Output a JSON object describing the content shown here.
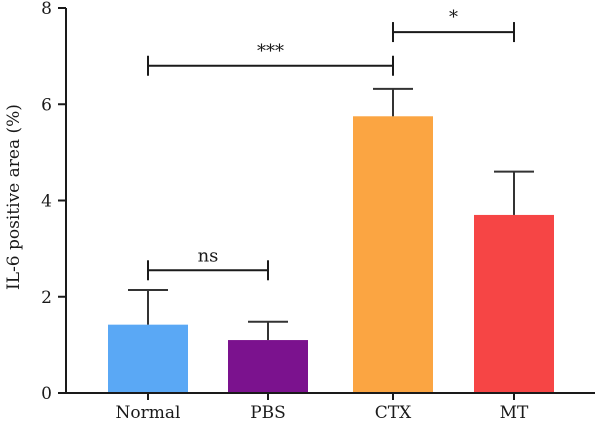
{
  "chart_data": {
    "type": "bar",
    "title": "",
    "xlabel": "",
    "ylabel": "IL-6 positive area (%)",
    "ylim": [
      0,
      8
    ],
    "yticks": [
      0,
      2,
      4,
      6,
      8
    ],
    "categories": [
      "Normal",
      "PBS",
      "CTX",
      "MT"
    ],
    "values": [
      1.42,
      1.1,
      5.75,
      3.7
    ],
    "errors": [
      0.72,
      0.38,
      0.57,
      0.9
    ],
    "colors": [
      "#5aa8f5",
      "#7b128e",
      "#fba542",
      "#f64545"
    ],
    "grid": false,
    "annotations": [
      {
        "label": "ns",
        "from": "Normal",
        "to": "PBS",
        "y": 2.55
      },
      {
        "label": "***",
        "from": "Normal",
        "to": "CTX",
        "y": 6.8
      },
      {
        "label": "*",
        "from": "CTX",
        "to": "MT",
        "y": 7.5
      }
    ]
  }
}
